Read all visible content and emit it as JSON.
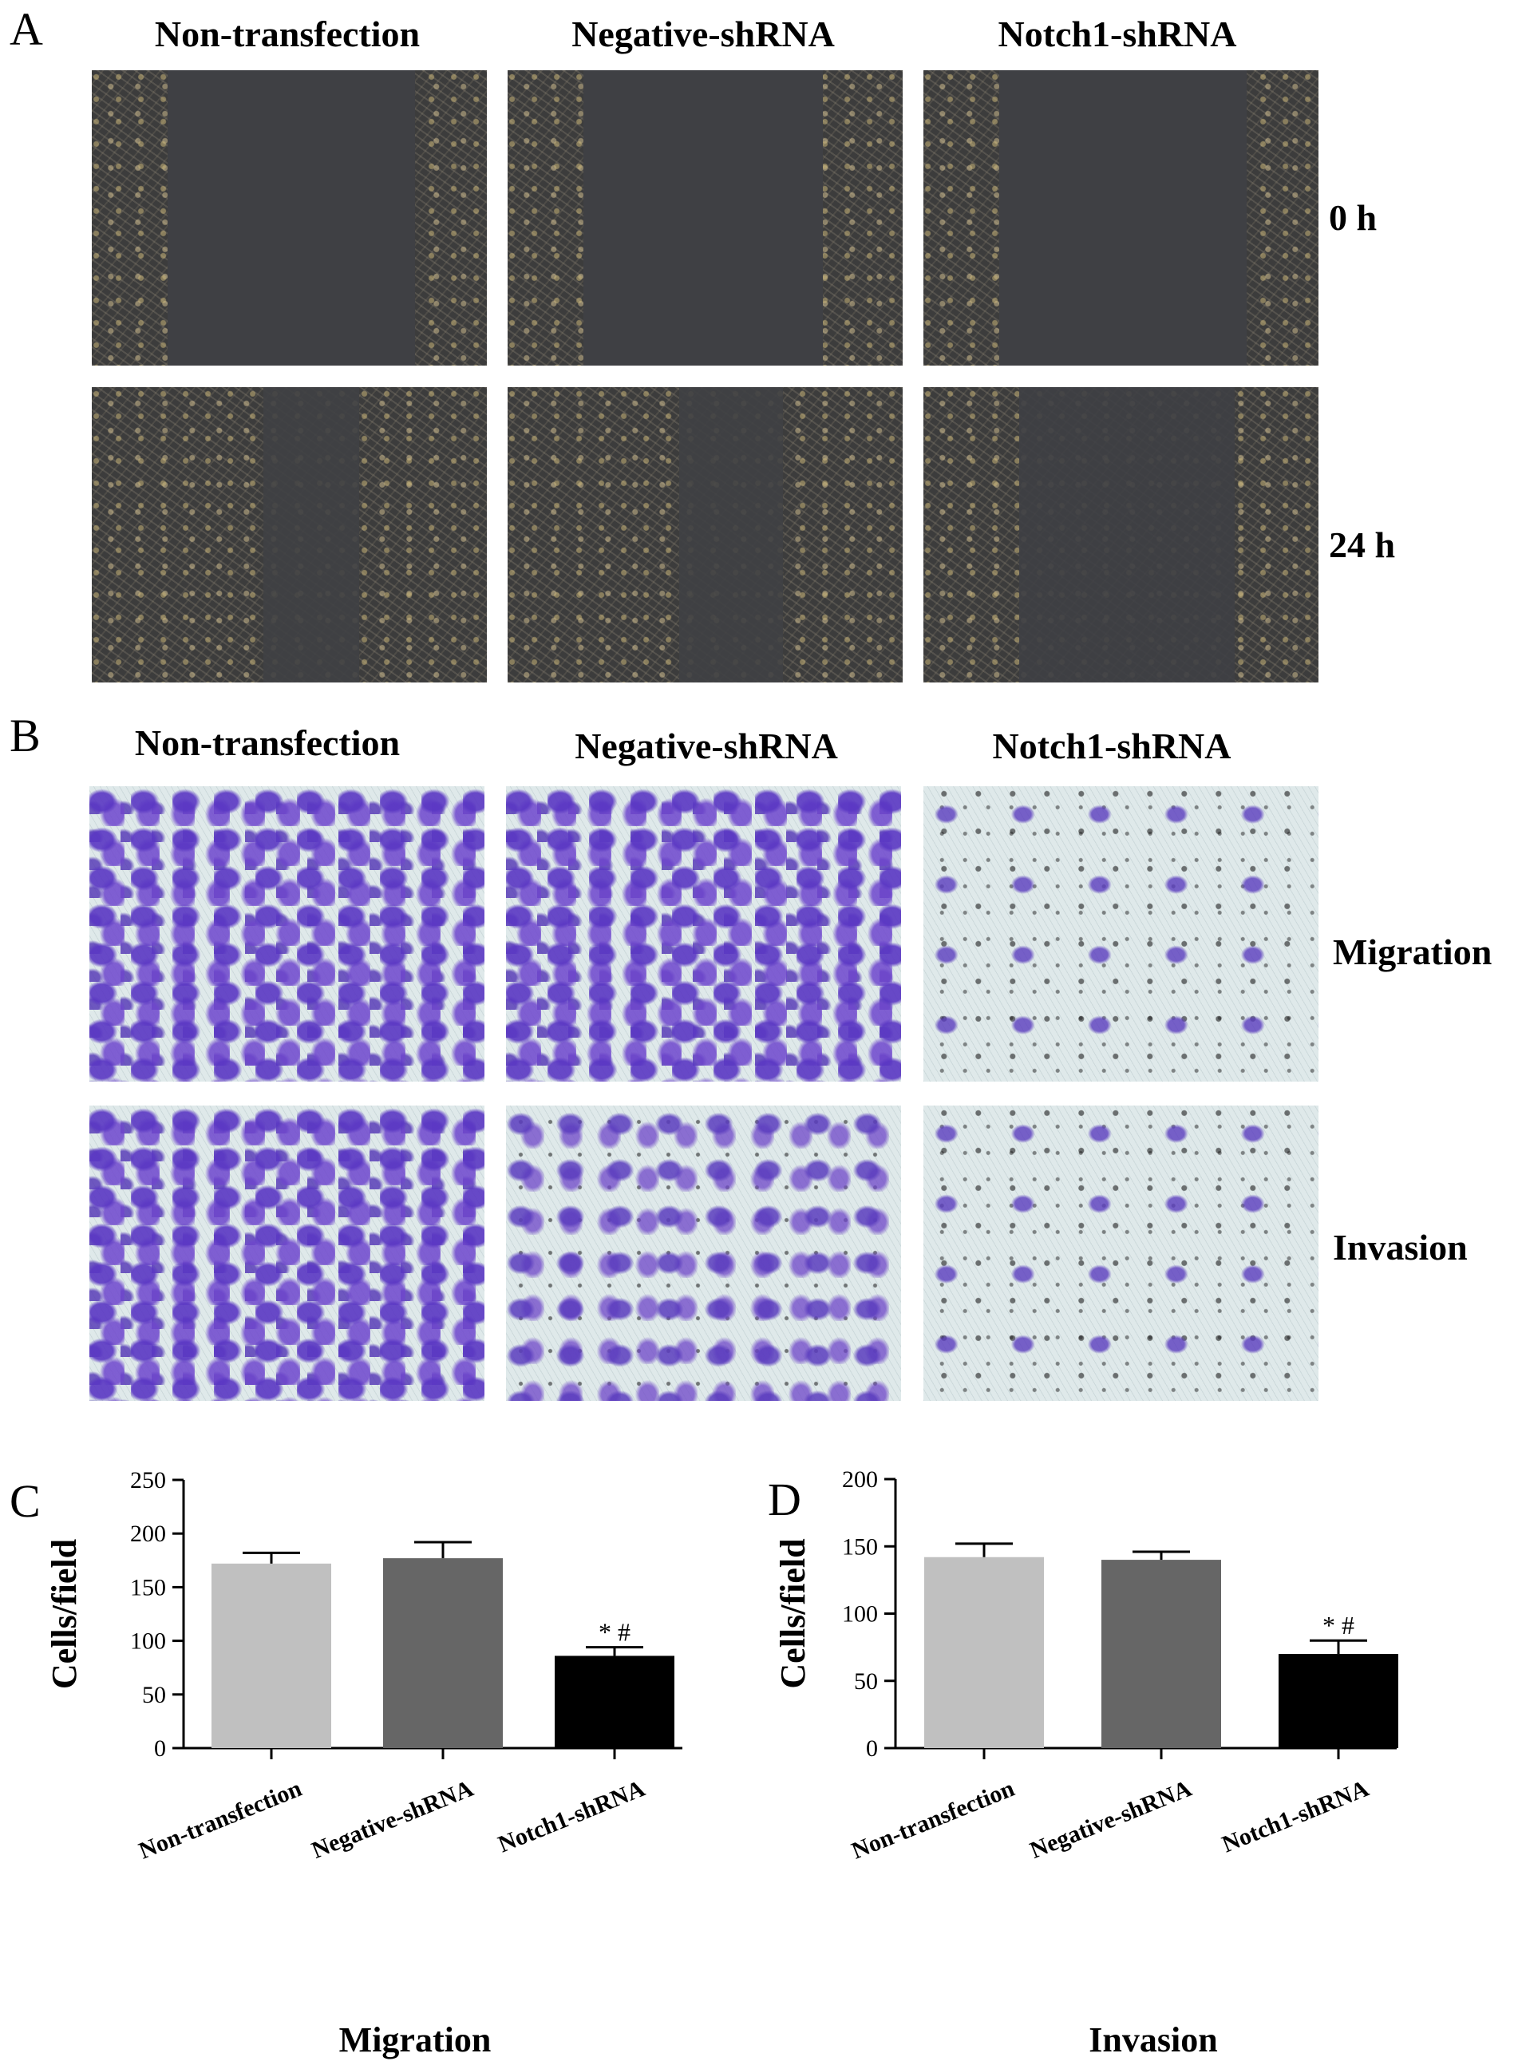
{
  "panel_a": {
    "letter": "A",
    "columns": [
      "Non-transfection",
      "Negative-shRNA",
      "Notch1-shRNA"
    ],
    "rows": [
      "0 h",
      "24 h"
    ]
  },
  "panel_b": {
    "letter": "B",
    "columns": [
      "Non-transfection",
      "Negative-shRNA",
      "Notch1-shRNA"
    ],
    "rows": [
      "Migration",
      "Invasion"
    ]
  },
  "chart_data": [
    {
      "panel": "C",
      "type": "bar",
      "categories": [
        "Non-transfection",
        "Negative-shRNA",
        "Notch1-shRNA"
      ],
      "values": [
        172,
        177,
        86
      ],
      "errors": [
        10,
        15,
        8
      ],
      "colors": [
        "#c0c0c0",
        "#666666",
        "#000000"
      ],
      "significance": [
        "",
        "",
        "* #"
      ],
      "ylabel": "Cells/field",
      "xlabel": "Migration",
      "ylim": [
        0,
        250
      ],
      "yticks": [
        0,
        50,
        100,
        150,
        200,
        250
      ],
      "grid": false
    },
    {
      "panel": "D",
      "type": "bar",
      "categories": [
        "Non-transfection",
        "Negative-shRNA",
        "Notch1-shRNA"
      ],
      "values": [
        142,
        140,
        70
      ],
      "errors": [
        10,
        6,
        10
      ],
      "colors": [
        "#c0c0c0",
        "#666666",
        "#000000"
      ],
      "significance": [
        "",
        "",
        "* #"
      ],
      "ylabel": "Cells/field",
      "xlabel": "Invasion",
      "ylim": [
        0,
        200
      ],
      "yticks": [
        0,
        50,
        100,
        150,
        200
      ],
      "grid": false
    }
  ]
}
